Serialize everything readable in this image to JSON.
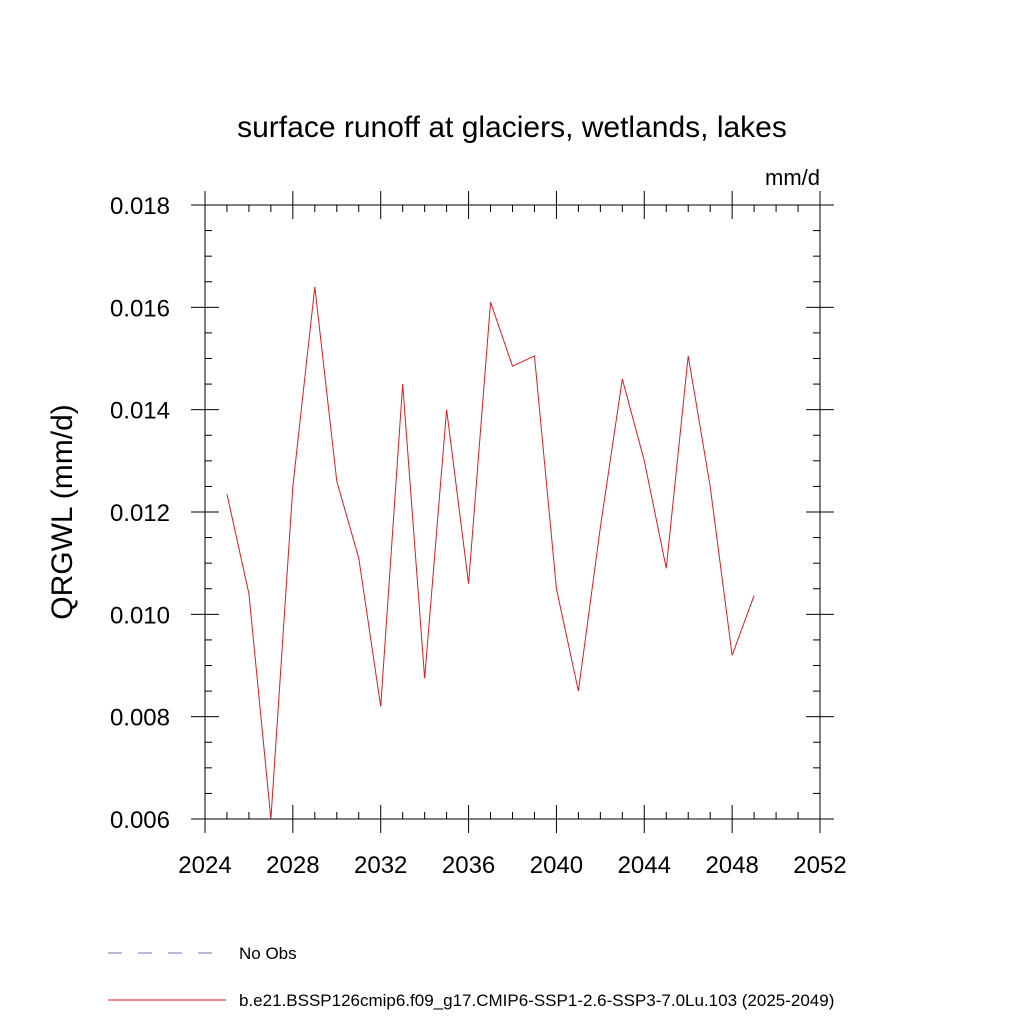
{
  "chart_data": {
    "type": "line",
    "title": "surface runoff at glaciers, wetlands, lakes",
    "units": "mm/d",
    "ylabel": "QRGWL  (mm/d)",
    "xlabel": "",
    "xlim": [
      2024,
      2052
    ],
    "ylim": [
      0.006,
      0.018
    ],
    "x_ticks": [
      2024,
      2028,
      2032,
      2036,
      2040,
      2044,
      2048,
      2052
    ],
    "x_tick_labels": [
      "2024",
      "2028",
      "2032",
      "2036",
      "2040",
      "2044",
      "2048",
      "2052"
    ],
    "y_ticks": [
      0.006,
      0.008,
      0.01,
      0.012,
      0.014,
      0.016,
      0.018
    ],
    "y_tick_labels": [
      "0.006",
      "0.008",
      "0.010",
      "0.012",
      "0.014",
      "0.016",
      "0.018"
    ],
    "grid": false,
    "legend_position": "bottom",
    "x": [
      2025,
      2026,
      2027,
      2028,
      2029,
      2030,
      2031,
      2032,
      2033,
      2034,
      2035,
      2036,
      2037,
      2038,
      2039,
      2040,
      2041,
      2042,
      2043,
      2044,
      2045,
      2046,
      2047,
      2048,
      2049
    ],
    "series": [
      {
        "name": "b.e21.BSSP126cmip6.f09_g17.CMIP6-SSP1-2.6-SSP3-7.0Lu.103 (2025-2049)",
        "color": "#e31a1c",
        "style": "solid",
        "values": [
          0.01235,
          0.0104,
          0.006,
          0.0125,
          0.0164,
          0.0126,
          0.0111,
          0.0082,
          0.0145,
          0.00875,
          0.014,
          0.0106,
          0.0161,
          0.01485,
          0.01505,
          0.0105,
          0.0085,
          0.0117,
          0.0146,
          0.013,
          0.0109,
          0.01505,
          0.0125,
          0.0092,
          0.01037
        ]
      }
    ],
    "legend": [
      {
        "label": "No Obs",
        "color": "#7b6fb0",
        "style": "dashed"
      },
      {
        "label": "b.e21.BSSP126cmip6.f09_g17.CMIP6-SSP1-2.6-SSP3-7.0Lu.103 (2025-2049)",
        "color": "#e31a1c",
        "style": "solid"
      }
    ]
  }
}
